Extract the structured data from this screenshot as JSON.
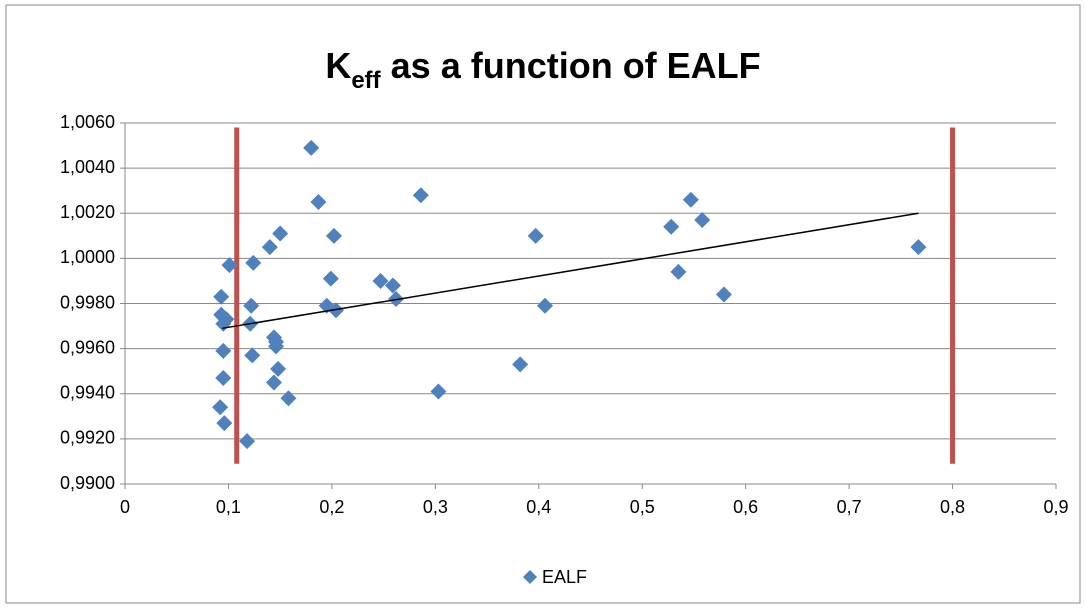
{
  "chart_data": {
    "type": "scatter",
    "title": {
      "main": "K",
      "subscript": "eff",
      "rest": "as a function of EALF"
    },
    "xlim": [
      0,
      0.9
    ],
    "ylim": [
      0.99,
      1.006
    ],
    "xticks": [
      0,
      {
        "value": 0.1,
        "label": "0,1"
      },
      {
        "value": 0.2,
        "label": "0,2"
      },
      {
        "value": 0.3,
        "label": "0,3"
      },
      {
        "value": 0.4,
        "label": "0,4"
      },
      {
        "value": 0.5,
        "label": "0,5"
      },
      {
        "value": 0.6,
        "label": "0,6"
      },
      {
        "value": 0.7,
        "label": "0,7"
      },
      {
        "value": 0.8,
        "label": "0,8"
      },
      {
        "value": 0.9,
        "label": "0,9"
      }
    ],
    "yticks": [
      {
        "value": 0.99,
        "label": "0,9900"
      },
      {
        "value": 0.992,
        "label": "0,9920"
      },
      {
        "value": 0.994,
        "label": "0,9940"
      },
      {
        "value": 0.996,
        "label": "0,9960"
      },
      {
        "value": 0.998,
        "label": "0,9980"
      },
      {
        "value": 1.0,
        "label": "1,0000"
      },
      {
        "value": 1.002,
        "label": "1,0020"
      },
      {
        "value": 1.004,
        "label": "1,0040"
      },
      {
        "value": 1.006,
        "label": "1,0060"
      }
    ],
    "grid": true,
    "legend": "bottom",
    "series": [
      {
        "name": "EALF",
        "color": "#4f81bd",
        "x": [
          0.18,
          0.187,
          0.286,
          0.547,
          0.528,
          0.558,
          0.15,
          0.202,
          0.397,
          0.14,
          0.767,
          0.101,
          0.124,
          0.199,
          0.247,
          0.259,
          0.535,
          0.262,
          0.579,
          0.093,
          0.195,
          0.204,
          0.406,
          0.122,
          0.093,
          0.098,
          0.095,
          0.121,
          0.144,
          0.146,
          0.095,
          0.123,
          0.146,
          0.382,
          0.148,
          0.095,
          0.144,
          0.303,
          0.158,
          0.092,
          0.096,
          0.118
        ],
        "values": [
          1.0049,
          1.0025,
          1.0028,
          1.0026,
          1.0014,
          1.0017,
          1.0011,
          1.001,
          1.001,
          1.0005,
          1.0005,
          0.9997,
          0.9998,
          0.9991,
          0.999,
          0.9988,
          0.9994,
          0.9982,
          0.9984,
          0.9983,
          0.9979,
          0.9977,
          0.9979,
          0.9979,
          0.9975,
          0.9973,
          0.9971,
          0.9971,
          0.9965,
          0.9961,
          0.9959,
          0.9957,
          0.9963,
          0.9953,
          0.9951,
          0.9947,
          0.9945,
          0.9941,
          0.9938,
          0.9934,
          0.9927,
          0.9919
        ]
      }
    ],
    "trendline": {
      "x": [
        0.094,
        0.767
      ],
      "y": [
        0.9969,
        1.002
      ],
      "color": "#000000"
    },
    "vlines": [
      {
        "x": 0.108,
        "y": [
          0.9909,
          1.0058
        ],
        "color": "#c0504d"
      },
      {
        "x": 0.8,
        "y": [
          0.9909,
          1.0058
        ],
        "color": "#c0504d"
      }
    ]
  }
}
